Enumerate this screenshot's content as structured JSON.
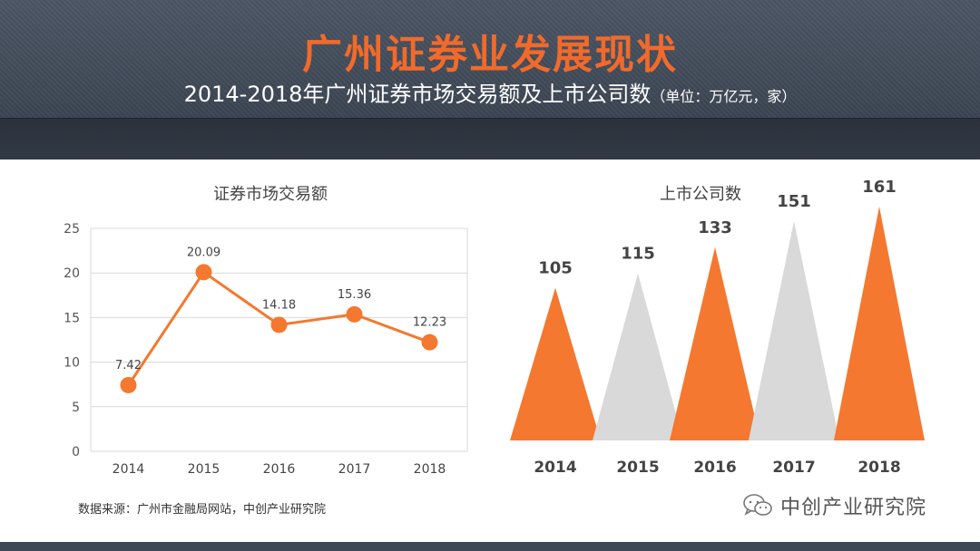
{
  "header": {
    "title": "广州证券业发展现状",
    "subtitle": "2014-2018年广州证券市场交易额及上市公司数",
    "unit_note": "（单位：万亿元，家）"
  },
  "colors": {
    "accent": "#f4782f",
    "gray": "#d9d9d9",
    "title": "#f26a2a"
  },
  "source_text": "数据来源：广州市金融局网站，中创产业研究院",
  "watermark": {
    "text": "中创产业研究院",
    "icon": "wechat-icon"
  },
  "chart_data": [
    {
      "type": "line",
      "title": "证券市场交易额",
      "xlabel": "",
      "ylabel": "",
      "categories": [
        "2014",
        "2015",
        "2016",
        "2017",
        "2018"
      ],
      "values": [
        7.42,
        20.09,
        14.18,
        15.36,
        12.23
      ],
      "value_labels": [
        "7.42",
        "20.09",
        "14.18",
        "15.36",
        "12.23"
      ],
      "ylim": [
        0,
        25
      ],
      "yticks": [
        "0",
        "5",
        "10",
        "15",
        "20",
        "25"
      ],
      "grid": true,
      "legend": "none"
    },
    {
      "type": "bar",
      "shape": "triangle",
      "title": "上市公司数",
      "categories": [
        "2014",
        "2015",
        "2016",
        "2017",
        "2018"
      ],
      "values": [
        105,
        115,
        133,
        151,
        161
      ],
      "value_labels": [
        "105",
        "115",
        "133",
        "151",
        "161"
      ],
      "colors": [
        "#f4782f",
        "#d9d9d9",
        "#f4782f",
        "#d9d9d9",
        "#f4782f"
      ],
      "grid": false,
      "legend": "none"
    }
  ]
}
